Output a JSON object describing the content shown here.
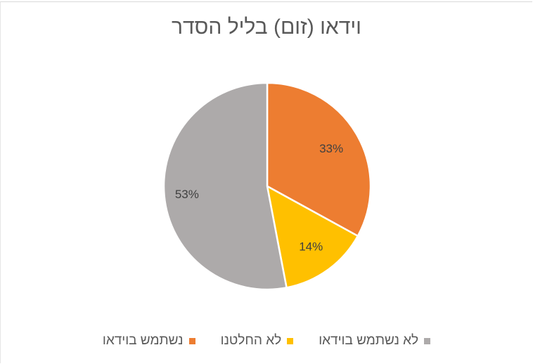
{
  "chart_data": {
    "type": "pie",
    "title": "וידאו (זום) בליל הסדר",
    "categories": [
      "נשתמש בוידאו",
      "לא החלטנו",
      "לא נשתמש בוידאו"
    ],
    "values": [
      33,
      14,
      53
    ],
    "labels": [
      "33%",
      "14%",
      "53%"
    ],
    "colors": [
      "#ED7D31",
      "#FFC000",
      "#A5A5A5"
    ],
    "legend_position": "bottom"
  },
  "legend": [
    {
      "label": "לא נשתמש בוידאו",
      "color": "#ADAAAA"
    },
    {
      "label": "לא החלטנו",
      "color": "#FFC000"
    },
    {
      "label": "נשתמש בוידאו",
      "color": "#ED7D31"
    }
  ]
}
